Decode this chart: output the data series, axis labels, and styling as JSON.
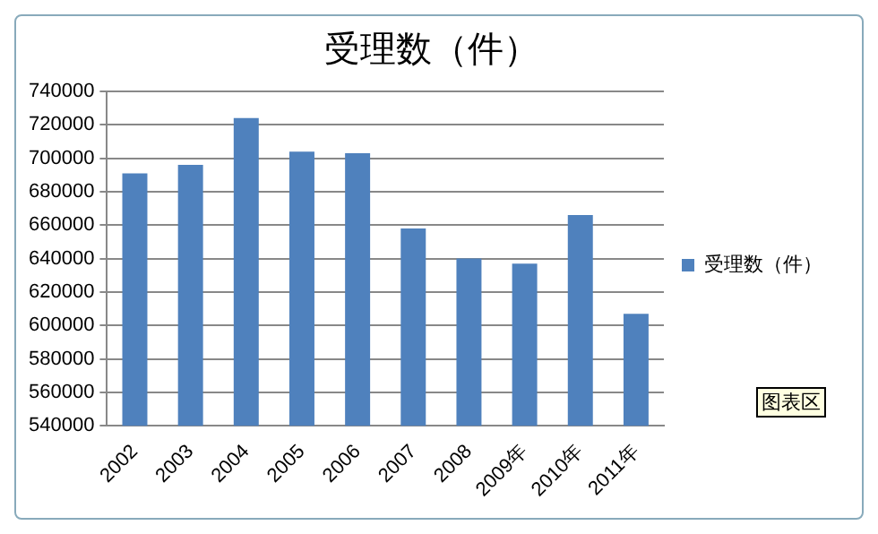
{
  "chart_data": {
    "type": "bar",
    "title": "受理数（件）",
    "categories": [
      "2002",
      "2003",
      "2004",
      "2005",
      "2006",
      "2007",
      "2008",
      "2009年",
      "2010年",
      "2011年"
    ],
    "series": [
      {
        "name": "受理数（件）",
        "color": "#4f81bd",
        "values": [
          691000,
          696000,
          724000,
          704000,
          703000,
          658000,
          640000,
          637000,
          666000,
          607000
        ]
      }
    ],
    "ylim": [
      540000,
      740000
    ],
    "yticks": [
      540000,
      560000,
      580000,
      600000,
      620000,
      640000,
      660000,
      680000,
      700000,
      720000,
      740000
    ],
    "grid": "y",
    "legend": "right",
    "annotations": [
      "图表区"
    ]
  }
}
